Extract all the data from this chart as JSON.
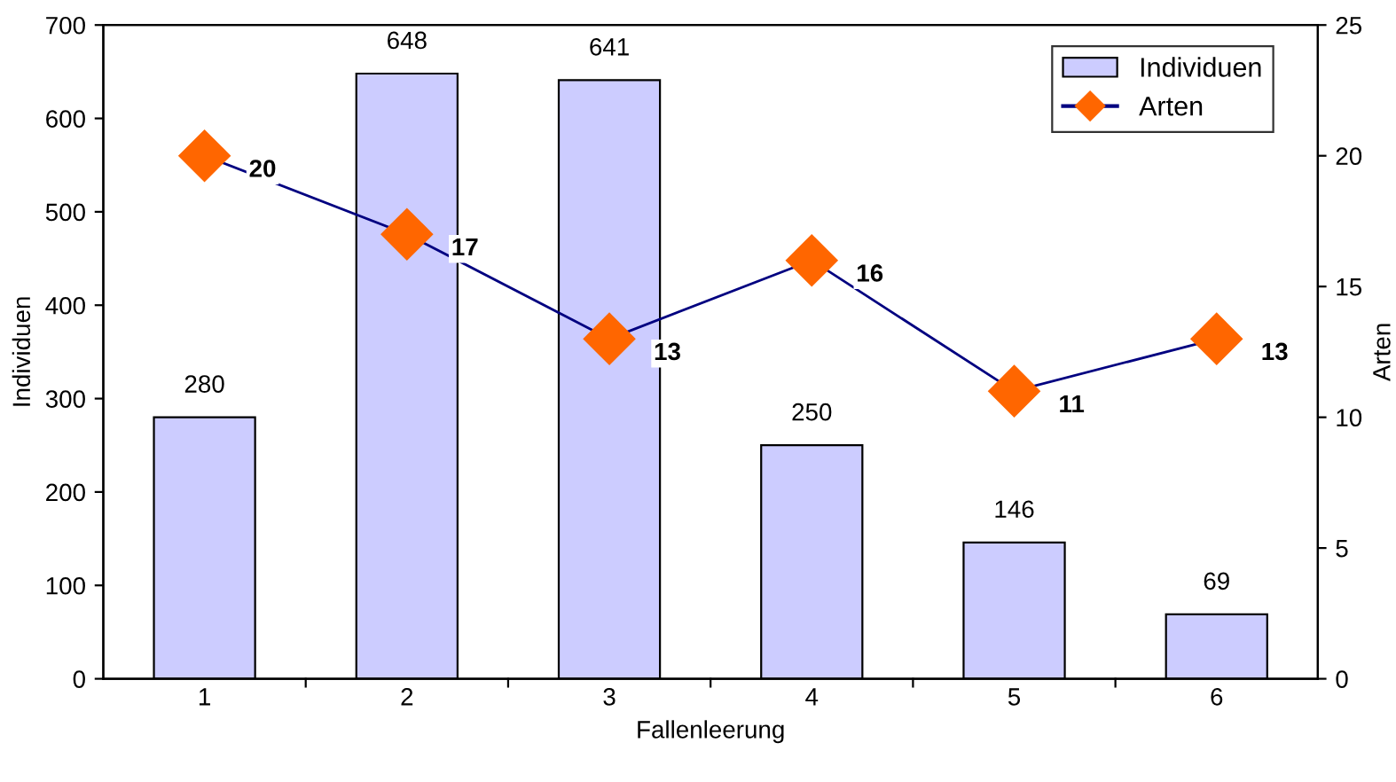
{
  "chart_data": {
    "type": "bar",
    "xlabel": "Fallenleerung",
    "ylabel": "Individuen",
    "y2label": "Arten",
    "categories": [
      "1",
      "2",
      "3",
      "4",
      "5",
      "6"
    ],
    "series": [
      {
        "name": "Individuen",
        "color": "#ccccff",
        "values": [
          280,
          648,
          641,
          250,
          146,
          69
        ]
      },
      {
        "name": "Arten",
        "type": "line",
        "axis": "y2",
        "color": "#000080",
        "colors": [
          "#ff6600",
          "#ff6600",
          "#ff6600",
          "#ff6600",
          "#ff6600",
          "#ff6600"
        ],
        "marker": "diamond",
        "values": [
          20,
          17,
          13,
          16,
          11,
          13
        ]
      }
    ],
    "ylim": [
      0,
      700
    ],
    "yticks": [
      0,
      100,
      200,
      300,
      400,
      500,
      600,
      700
    ],
    "y2lim": [
      0,
      25
    ],
    "y2ticks": [
      0,
      5,
      10,
      15,
      20,
      25
    ],
    "data_labels": true,
    "legend": "top right",
    "grid": false
  }
}
